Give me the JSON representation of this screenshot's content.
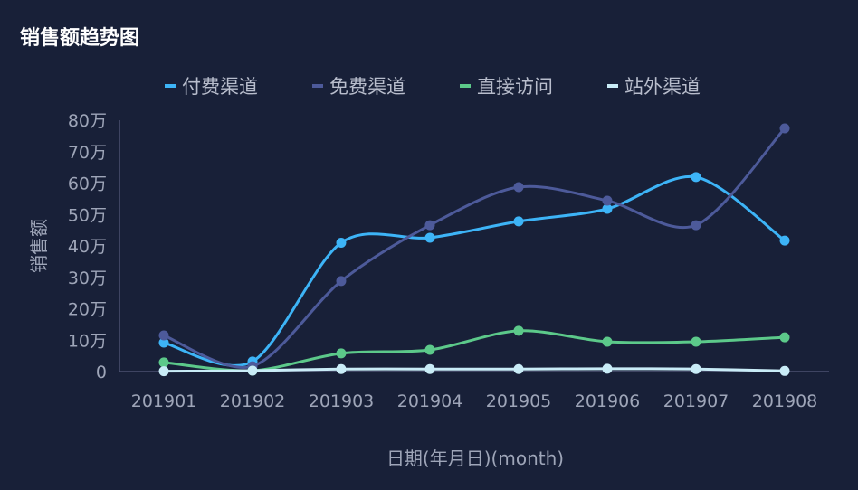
{
  "title": "销售额趋势图",
  "chart_data": {
    "type": "line",
    "title": "销售额趋势图",
    "xlabel": "日期(年月日)(month)",
    "ylabel": "销售额",
    "categories": [
      "201901",
      "201902",
      "201903",
      "201904",
      "201905",
      "201906",
      "201907",
      "201908"
    ],
    "ylim": [
      0,
      80
    ],
    "yticks": [
      "0",
      "10万",
      "20万",
      "30万",
      "40万",
      "50万",
      "60万",
      "70万",
      "80万"
    ],
    "unit": "万",
    "grid": false,
    "legend_position": "top-center",
    "smooth": true,
    "series": [
      {
        "name": "付费渠道",
        "color": "#3db4f7",
        "values": [
          9.2,
          3.2,
          41.0,
          42.6,
          47.8,
          51.8,
          61.9,
          41.7
        ]
      },
      {
        "name": "免费渠道",
        "color": "#4d5a9a",
        "values": [
          11.5,
          1.7,
          28.8,
          46.6,
          58.7,
          54.4,
          46.6,
          77.4
        ]
      },
      {
        "name": "直接访问",
        "color": "#5cc98a",
        "values": [
          2.9,
          0.3,
          5.8,
          6.9,
          13.0,
          9.5,
          9.5,
          10.9
        ]
      },
      {
        "name": "站外渠道",
        "color": "#c9ecf7",
        "values": [
          0.1,
          0.3,
          0.8,
          0.8,
          0.8,
          0.9,
          0.8,
          0.2
        ]
      }
    ]
  }
}
